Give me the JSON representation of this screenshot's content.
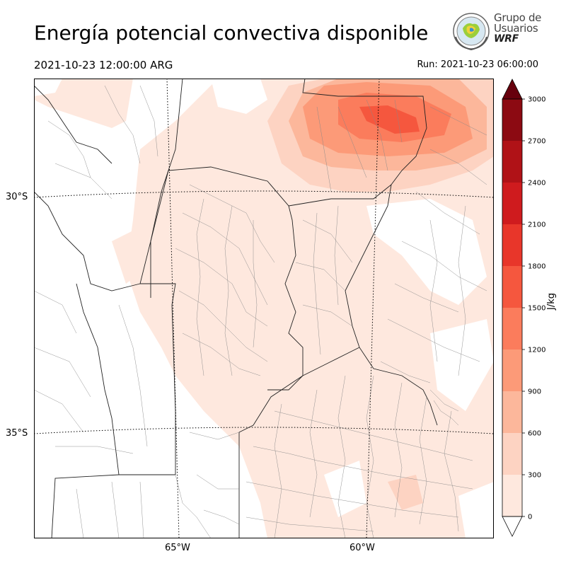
{
  "header": {
    "title": "Energía potencial convectiva disponible",
    "valid_time": "2021-10-23 12:00:00 ARG",
    "run_time": "Run: 2021-10-23 06:00:00"
  },
  "logo": {
    "line1": "Grupo de",
    "line2": "Usuarios",
    "line3": "WRF"
  },
  "map": {
    "lat_labels": [
      "30°S",
      "35°S"
    ],
    "lon_labels": [
      "65°W",
      "60°W"
    ]
  },
  "colorbar": {
    "unit": "J/kg",
    "ticks": [
      "0",
      "300",
      "600",
      "900",
      "1200",
      "1500",
      "1800",
      "2100",
      "2400",
      "2700",
      "3000"
    ],
    "colors": [
      "#fee8de",
      "#fdd3c2",
      "#fcb79b",
      "#fc9a78",
      "#fb7c5c",
      "#f5573e",
      "#e8362a",
      "#cf1b1e",
      "#b01217",
      "#8c0a12"
    ],
    "over_color": "#67000d",
    "under_color": "#ffffff"
  }
}
